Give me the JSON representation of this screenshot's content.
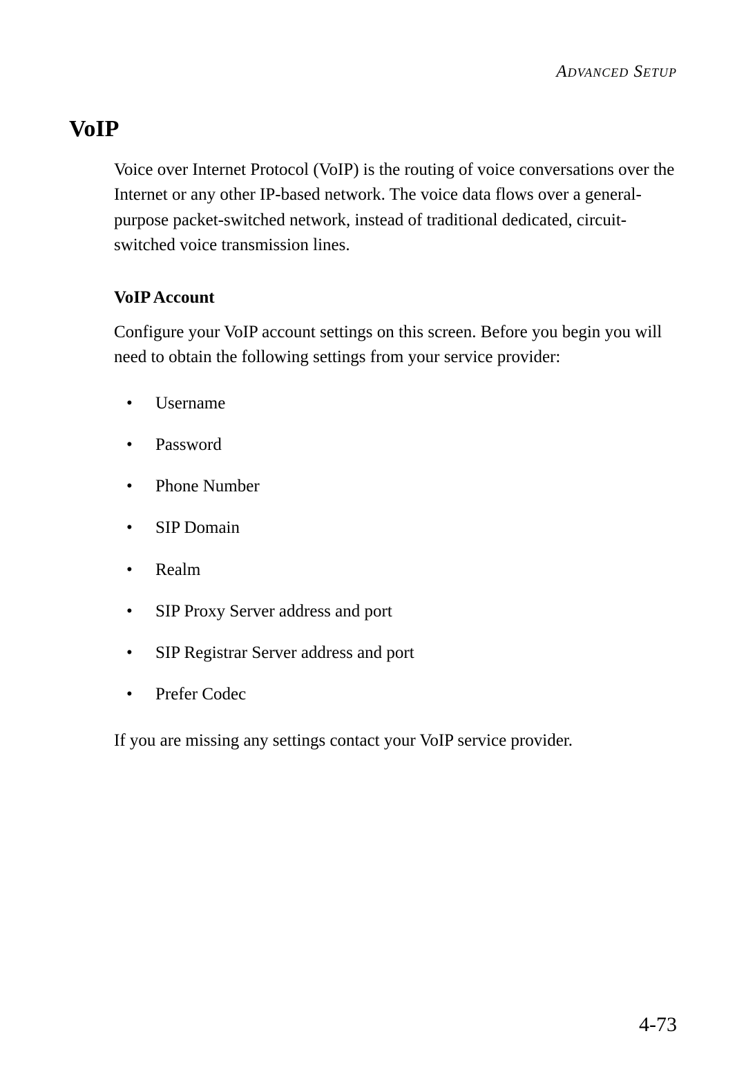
{
  "header": {
    "runningTitle": "Advanced Setup"
  },
  "section": {
    "title": "VoIP",
    "intro": "Voice over Internet Protocol (VoIP) is the routing of voice conversations over the Internet or any other IP-based network. The voice data flows over a general-purpose packet-switched network, instead of traditional dedicated, circuit-switched voice transmission lines."
  },
  "subsection": {
    "title": "VoIP Account",
    "intro": "Configure your VoIP account settings on this screen. Before you begin you will need to obtain the following settings from your service provider:",
    "items": [
      "Username",
      "Password",
      "Phone Number",
      "SIP Domain",
      "Realm",
      "SIP Proxy Server address and port",
      "SIP Registrar Server address and port",
      "Prefer Codec"
    ],
    "closing": "If you are missing any settings contact your VoIP service provider."
  },
  "pageNumber": "4-73",
  "colors": {
    "text": "#000000",
    "background": "#ffffff"
  },
  "typography": {
    "bodyFontSize": 25,
    "titleFontSize": 34,
    "pageNumFontSize": 30,
    "headerFontSize": 25,
    "fontFamily": "Garamond, Times New Roman, serif"
  }
}
